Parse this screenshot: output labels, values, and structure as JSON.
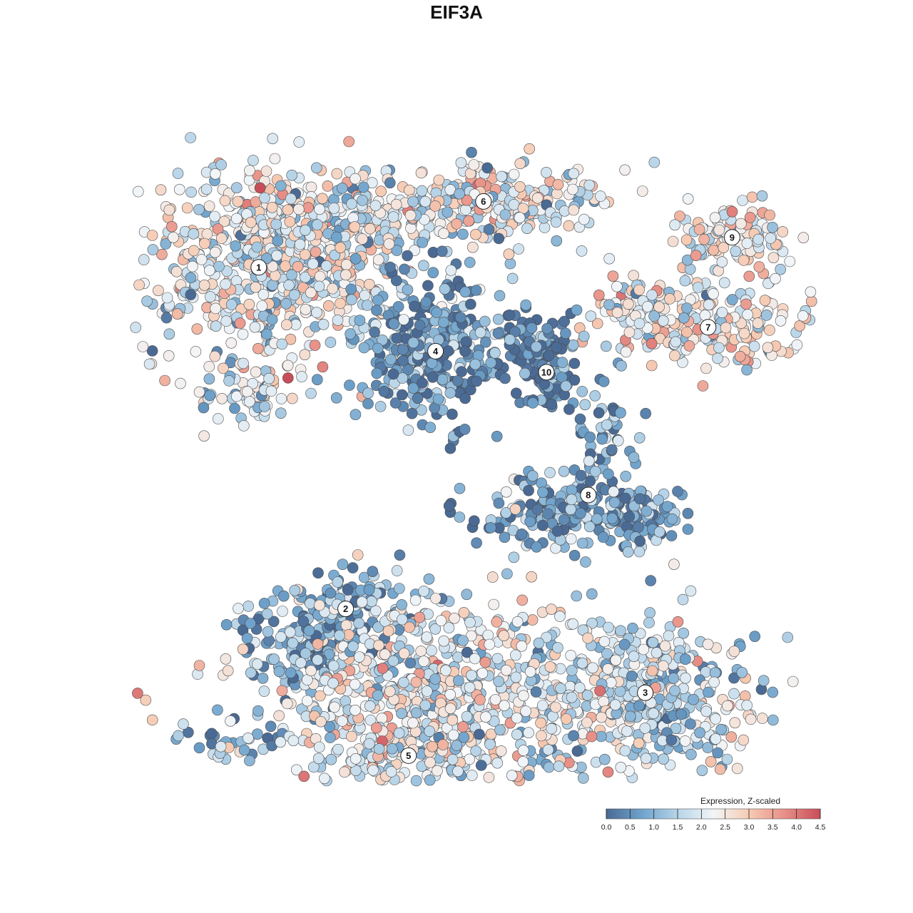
{
  "chart_data": {
    "type": "scatter",
    "title": "EIF3A",
    "xlabel": "",
    "ylabel": "",
    "grid": false,
    "colorbar": {
      "title": "Expression, Z-scaled",
      "ticks": [
        "0.0",
        "0.5",
        "1.0",
        "1.5",
        "2.0",
        "2.5",
        "3.0",
        "3.5",
        "4.0",
        "4.5"
      ],
      "range": [
        0,
        4.5
      ],
      "colors": [
        "#4a6a94",
        "#6fa3cc",
        "#b7d4e8",
        "#f2f5f8",
        "#f6cbb3",
        "#e88f87",
        "#c84d5a"
      ],
      "placement": "bottom-right"
    },
    "clusters": [
      {
        "label": "1",
        "x": -0.66,
        "y": 0.56,
        "mean_expr": 2.1
      },
      {
        "label": "2",
        "x": -0.37,
        "y": -0.58,
        "mean_expr": 0.9
      },
      {
        "label": "3",
        "x": 0.63,
        "y": -0.86,
        "mean_expr": 1.7
      },
      {
        "label": "4",
        "x": -0.07,
        "y": 0.28,
        "mean_expr": 0.6
      },
      {
        "label": "5",
        "x": -0.16,
        "y": -1.07,
        "mean_expr": 2.0
      },
      {
        "label": "6",
        "x": 0.09,
        "y": 0.78,
        "mean_expr": 2.2
      },
      {
        "label": "7",
        "x": 0.84,
        "y": 0.36,
        "mean_expr": 2.4
      },
      {
        "label": "8",
        "x": 0.44,
        "y": -0.2,
        "mean_expr": 0.8
      },
      {
        "label": "9",
        "x": 0.92,
        "y": 0.66,
        "mean_expr": 2.3
      },
      {
        "label": "10",
        "x": 0.3,
        "y": 0.21,
        "mean_expr": 0.3
      }
    ]
  }
}
